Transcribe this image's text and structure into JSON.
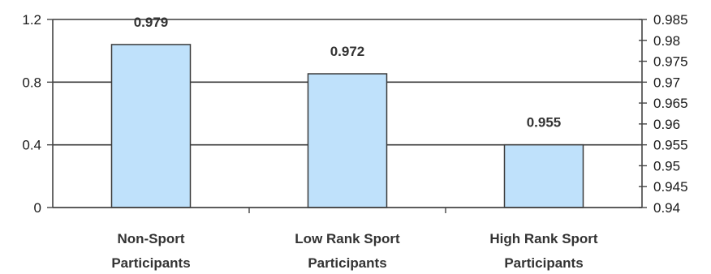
{
  "chart_data": {
    "type": "bar",
    "categories": [
      [
        "Non-Sport",
        "Participants"
      ],
      [
        "Low Rank Sport",
        "Participants"
      ],
      [
        "High Rank Sport",
        "Participants"
      ]
    ],
    "series": [
      {
        "values": [
          0.979,
          0.972,
          0.955
        ],
        "data_labels": [
          "0.979",
          "0.972",
          "0.955"
        ]
      }
    ],
    "title": "",
    "xlabel": "",
    "ylabel": "",
    "axis_plotted": "right",
    "ylim_right": [
      0.94,
      0.985
    ],
    "right_ticks": [
      "0.94",
      "0.945",
      "0.95",
      "0.955",
      "0.96",
      "0.965",
      "0.97",
      "0.975",
      "0.98",
      "0.985"
    ],
    "ylim_left": [
      0,
      1.2
    ],
    "left_ticks": [
      "0",
      "0.4",
      "0.8",
      "1.2"
    ],
    "grid": "horizontal at left-axis ticks",
    "legend": "none",
    "colors": {
      "bar_fill": "#bfe1fb",
      "bar_stroke": "#3a3a3a",
      "axis": "#444444",
      "grid": "#3a3a3a"
    }
  }
}
